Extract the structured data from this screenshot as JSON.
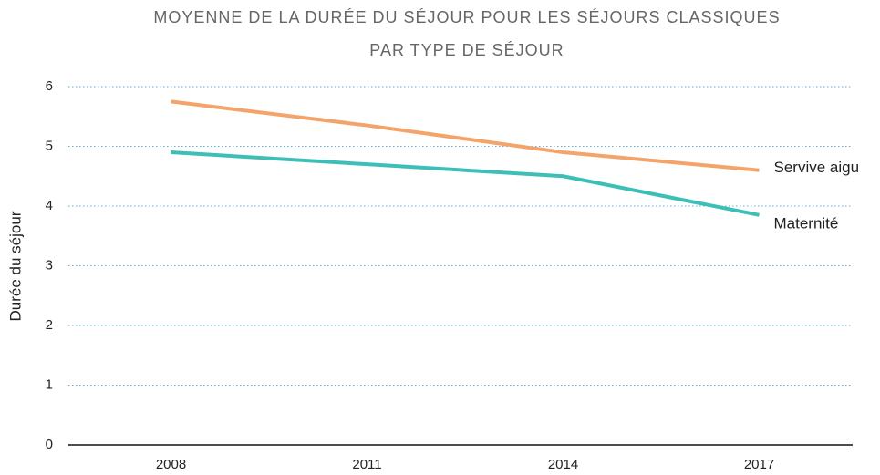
{
  "chart_data": {
    "type": "line",
    "title": [
      "MOYENNE DE LA DURÉE DU SÉJOUR POUR LES SÉJOURS CLASSIQUES",
      "PAR TYPE DE SÉJOUR"
    ],
    "y_label": "Durée du séjour",
    "categories": [
      "2008",
      "2011",
      "2014",
      "2017"
    ],
    "series": [
      {
        "name": "Servive aigu",
        "color": "#f4a46a",
        "values": [
          5.75,
          5.35,
          4.9,
          4.6
        ]
      },
      {
        "name": "Maternité",
        "color": "#3dbfb8",
        "values": [
          4.9,
          4.7,
          4.5,
          3.85
        ]
      }
    ],
    "ylim": [
      0,
      6
    ],
    "yticks": [
      0,
      1,
      2,
      3,
      4,
      5,
      6
    ],
    "grid": true
  }
}
